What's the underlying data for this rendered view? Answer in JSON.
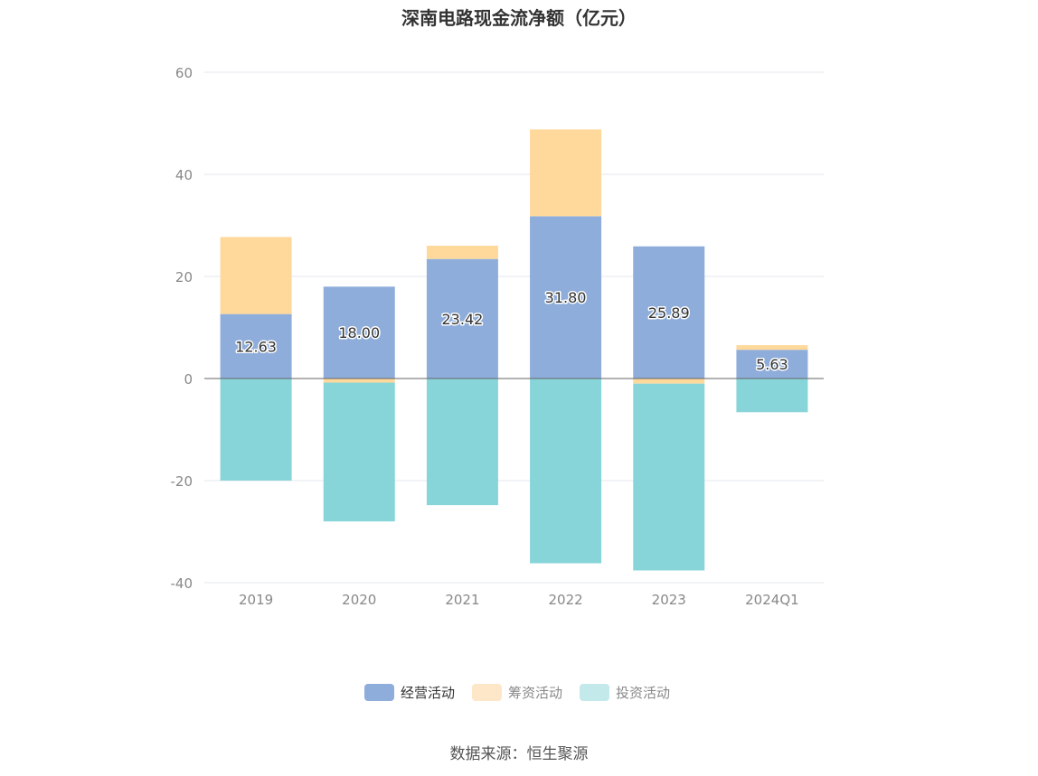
{
  "chart_data": {
    "type": "bar",
    "stacked": true,
    "title": "深南电路现金流净额（亿元）",
    "xlabel": "",
    "ylabel": "",
    "categories": [
      "2019",
      "2020",
      "2021",
      "2022",
      "2023",
      "2024Q1"
    ],
    "ylim": [
      -40,
      60
    ],
    "yticks": [
      60,
      40,
      20,
      0,
      -20,
      -40
    ],
    "grid": true,
    "legend_position": "bottom",
    "series": [
      {
        "name": "经营活动",
        "color": "#8eaddb",
        "values": [
          12.63,
          18.0,
          23.42,
          31.8,
          25.89,
          5.63
        ],
        "labels": [
          "12.63",
          "18.00",
          "23.42",
          "31.80",
          "25.89",
          "5.63"
        ]
      },
      {
        "name": "筹资活动",
        "color": "#ffd99b",
        "values": [
          15.1,
          -0.8,
          2.6,
          17.0,
          -1.0,
          0.9
        ]
      },
      {
        "name": "投资活动",
        "color": "#88d5d9",
        "values": [
          -20.0,
          -27.2,
          -24.8,
          -36.2,
          -36.6,
          -6.6
        ]
      }
    ],
    "legend_swatch_colors": [
      "#8eaddb",
      "#fde7c8",
      "#c4e9eb"
    ]
  },
  "source_note": "数据来源：恒生聚源"
}
